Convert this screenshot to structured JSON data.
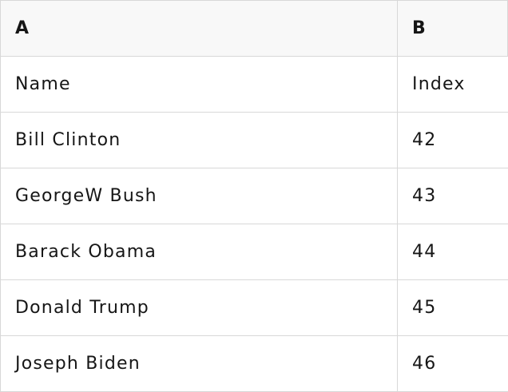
{
  "table": {
    "columns": [
      "A",
      "B"
    ],
    "rows": [
      [
        "Name",
        "Index"
      ],
      [
        "Bill Clinton",
        "42"
      ],
      [
        "GeorgeW Bush",
        "43"
      ],
      [
        "Barack Obama",
        "44"
      ],
      [
        "Donald Trump",
        "45"
      ],
      [
        "Joseph Biden",
        "46"
      ]
    ]
  },
  "colors": {
    "header_background": "#f8f8f8",
    "border": "#d8d8d8",
    "text": "#161616"
  }
}
